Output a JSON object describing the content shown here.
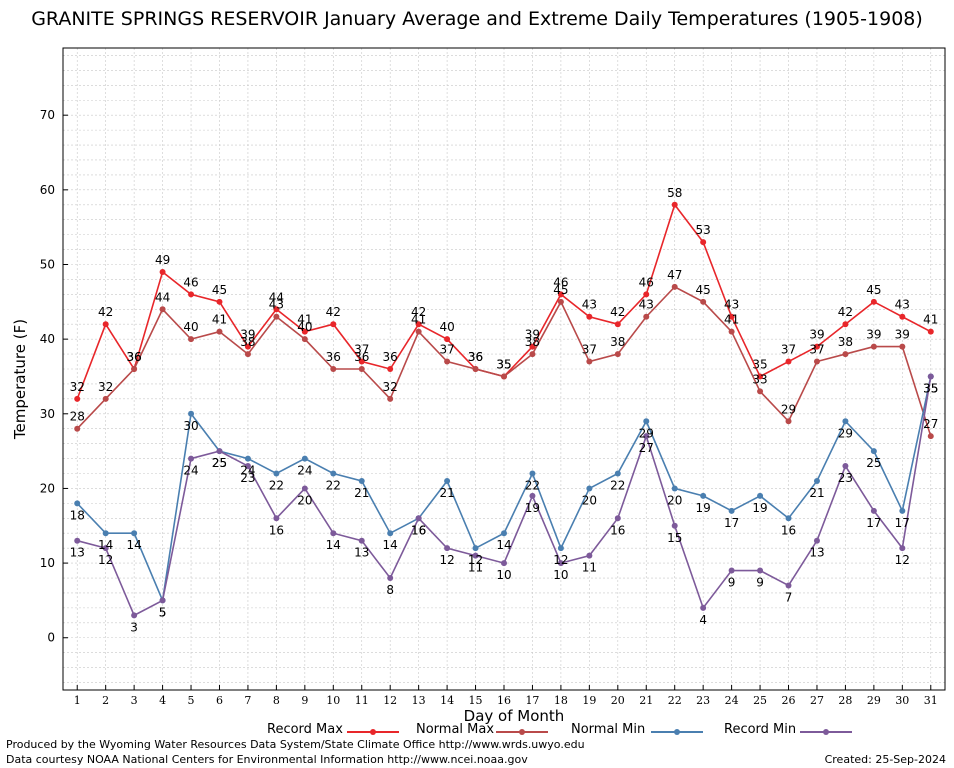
{
  "chart_data": {
    "type": "line",
    "title": "GRANITE SPRINGS RESERVOIR January Average and Extreme Daily Temperatures (1905-1908)",
    "xlabel": "Day of Month",
    "ylabel": "Temperature (F)",
    "ylim": [
      -7,
      79
    ],
    "yticks": [
      0,
      10,
      20,
      30,
      40,
      50,
      60,
      70
    ],
    "x": [
      1,
      2,
      3,
      4,
      5,
      6,
      7,
      8,
      9,
      10,
      11,
      12,
      13,
      14,
      15,
      16,
      17,
      18,
      19,
      20,
      21,
      22,
      23,
      24,
      25,
      26,
      27,
      28,
      29,
      30,
      31
    ],
    "grid": true,
    "legend_position": "bottom",
    "series": [
      {
        "name": "Record Max",
        "color": "#e8262a",
        "values": [
          32,
          42,
          36,
          49,
          46,
          45,
          39,
          44,
          41,
          42,
          37,
          36,
          42,
          40,
          36,
          35,
          39,
          46,
          43,
          42,
          46,
          58,
          53,
          43,
          35,
          37,
          39,
          42,
          45,
          43,
          41
        ]
      },
      {
        "name": "Normal Max",
        "color": "#b94a4a",
        "values": [
          28,
          32,
          36,
          44,
          40,
          41,
          38,
          43,
          40,
          36,
          36,
          32,
          41,
          37,
          36,
          35,
          38,
          45,
          37,
          38,
          43,
          47,
          45,
          41,
          33,
          29,
          37,
          38,
          39,
          39,
          27
        ]
      },
      {
        "name": "Normal Min",
        "color": "#4a7fb0",
        "values": [
          18,
          14,
          14,
          5,
          30,
          25,
          24,
          22,
          24,
          22,
          21,
          14,
          16,
          21,
          12,
          14,
          22,
          12,
          20,
          22,
          29,
          20,
          19,
          17,
          19,
          16,
          21,
          29,
          25,
          17,
          35
        ]
      },
      {
        "name": "Record Min",
        "color": "#7d5a9a",
        "values": [
          13,
          12,
          3,
          5,
          24,
          25,
          23,
          16,
          20,
          14,
          13,
          8,
          16,
          12,
          11,
          10,
          19,
          10,
          11,
          16,
          27,
          15,
          4,
          9,
          9,
          7,
          13,
          23,
          17,
          12,
          35
        ]
      }
    ]
  },
  "footer": {
    "produced_by": "Produced by the Wyoming Water Resources Data System/State Climate Office http://www.wrds.uwyo.edu",
    "courtesy": "Data courtesy NOAA National Centers for Environmental Information http://www.ncei.noaa.gov",
    "created": "Created:  25-Sep-2024"
  }
}
